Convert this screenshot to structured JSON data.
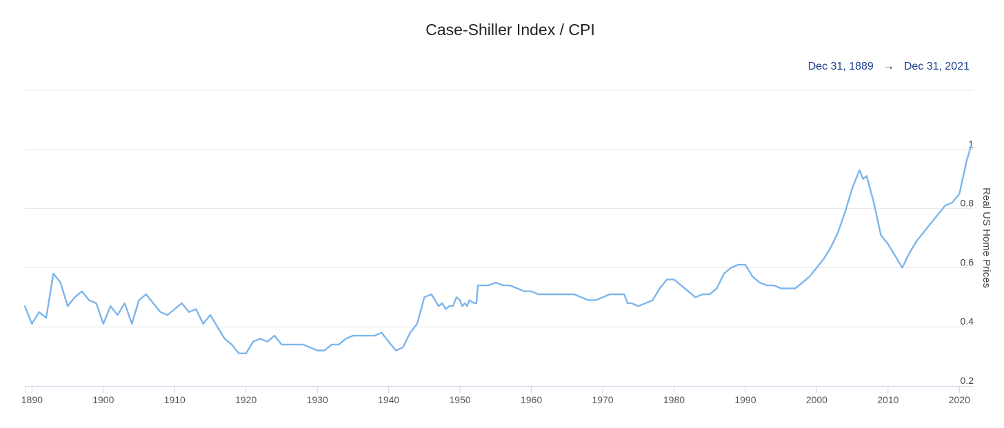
{
  "chart_data": {
    "type": "line",
    "title": "Case-Shiller Index / CPI",
    "date_range": {
      "start": "Dec 31, 1889",
      "separator": "→",
      "end": "Dec 31, 2021"
    },
    "xlabel": "",
    "ylabel": "Real US Home Prices",
    "xlim": [
      1889,
      2022
    ],
    "ylim": [
      0.2,
      1.2
    ],
    "x_ticks": [
      1890,
      1900,
      1910,
      1920,
      1930,
      1940,
      1950,
      1960,
      1970,
      1980,
      1990,
      2000,
      2010,
      2020
    ],
    "y_ticks": [
      0.2,
      0.4,
      0.6,
      0.8,
      1
    ],
    "y_tick_labels": [
      "0.2",
      "0.4",
      "0.6",
      "0.8",
      "1"
    ],
    "y_axis_position": "right",
    "grid": "horizontal",
    "line_color": "#7cb5ec",
    "series": [
      {
        "values": [
          [
            1889,
            0.47
          ],
          [
            1890,
            0.41
          ],
          [
            1891,
            0.45
          ],
          [
            1892,
            0.43
          ],
          [
            1893,
            0.58
          ],
          [
            1894,
            0.55
          ],
          [
            1895,
            0.47
          ],
          [
            1896,
            0.5
          ],
          [
            1897,
            0.52
          ],
          [
            1898,
            0.49
          ],
          [
            1899,
            0.48
          ],
          [
            1900,
            0.41
          ],
          [
            1901,
            0.47
          ],
          [
            1902,
            0.44
          ],
          [
            1903,
            0.48
          ],
          [
            1904,
            0.41
          ],
          [
            1905,
            0.49
          ],
          [
            1906,
            0.51
          ],
          [
            1907,
            0.48
          ],
          [
            1908,
            0.45
          ],
          [
            1909,
            0.44
          ],
          [
            1910,
            0.46
          ],
          [
            1911,
            0.48
          ],
          [
            1912,
            0.45
          ],
          [
            1913,
            0.46
          ],
          [
            1914,
            0.41
          ],
          [
            1915,
            0.44
          ],
          [
            1916,
            0.4
          ],
          [
            1917,
            0.36
          ],
          [
            1918,
            0.34
          ],
          [
            1919,
            0.31
          ],
          [
            1920,
            0.31
          ],
          [
            1921,
            0.35
          ],
          [
            1922,
            0.36
          ],
          [
            1923,
            0.35
          ],
          [
            1924,
            0.37
          ],
          [
            1925,
            0.34
          ],
          [
            1926,
            0.34
          ],
          [
            1927,
            0.34
          ],
          [
            1928,
            0.34
          ],
          [
            1929,
            0.33
          ],
          [
            1930,
            0.32
          ],
          [
            1931,
            0.32
          ],
          [
            1932,
            0.34
          ],
          [
            1933,
            0.34
          ],
          [
            1934,
            0.36
          ],
          [
            1935,
            0.37
          ],
          [
            1936,
            0.37
          ],
          [
            1937,
            0.37
          ],
          [
            1938,
            0.37
          ],
          [
            1939,
            0.38
          ],
          [
            1940,
            0.35
          ],
          [
            1941,
            0.32
          ],
          [
            1942,
            0.33
          ],
          [
            1943,
            0.38
          ],
          [
            1944,
            0.41
          ],
          [
            1945,
            0.5
          ],
          [
            1946,
            0.51
          ],
          [
            1947,
            0.47
          ],
          [
            1947.5,
            0.48
          ],
          [
            1948,
            0.46
          ],
          [
            1948.5,
            0.47
          ],
          [
            1949,
            0.47
          ],
          [
            1949.5,
            0.5
          ],
          [
            1950,
            0.49
          ],
          [
            1950.3,
            0.47
          ],
          [
            1950.7,
            0.48
          ],
          [
            1951,
            0.47
          ],
          [
            1951.3,
            0.49
          ],
          [
            1952,
            0.48
          ],
          [
            1952.3,
            0.48
          ],
          [
            1952.5,
            0.54
          ],
          [
            1953,
            0.54
          ],
          [
            1954,
            0.54
          ],
          [
            1955,
            0.55
          ],
          [
            1956,
            0.54
          ],
          [
            1957,
            0.54
          ],
          [
            1958,
            0.53
          ],
          [
            1959,
            0.52
          ],
          [
            1960,
            0.52
          ],
          [
            1961,
            0.51
          ],
          [
            1962,
            0.51
          ],
          [
            1963,
            0.51
          ],
          [
            1964,
            0.51
          ],
          [
            1965,
            0.51
          ],
          [
            1966,
            0.51
          ],
          [
            1967,
            0.5
          ],
          [
            1968,
            0.49
          ],
          [
            1969,
            0.49
          ],
          [
            1970,
            0.5
          ],
          [
            1971,
            0.51
          ],
          [
            1972,
            0.51
          ],
          [
            1973,
            0.51
          ],
          [
            1973.5,
            0.48
          ],
          [
            1974,
            0.48
          ],
          [
            1975,
            0.47
          ],
          [
            1976,
            0.48
          ],
          [
            1977,
            0.49
          ],
          [
            1978,
            0.53
          ],
          [
            1979,
            0.56
          ],
          [
            1980,
            0.56
          ],
          [
            1981,
            0.54
          ],
          [
            1982,
            0.52
          ],
          [
            1983,
            0.5
          ],
          [
            1984,
            0.51
          ],
          [
            1985,
            0.51
          ],
          [
            1986,
            0.53
          ],
          [
            1987,
            0.58
          ],
          [
            1988,
            0.6
          ],
          [
            1989,
            0.61
          ],
          [
            1990,
            0.61
          ],
          [
            1991,
            0.57
          ],
          [
            1992,
            0.55
          ],
          [
            1993,
            0.54
          ],
          [
            1994,
            0.54
          ],
          [
            1995,
            0.53
          ],
          [
            1996,
            0.53
          ],
          [
            1997,
            0.53
          ],
          [
            1998,
            0.55
          ],
          [
            1999,
            0.57
          ],
          [
            2000,
            0.6
          ],
          [
            2001,
            0.63
          ],
          [
            2002,
            0.67
          ],
          [
            2003,
            0.72
          ],
          [
            2004,
            0.79
          ],
          [
            2005,
            0.87
          ],
          [
            2006,
            0.93
          ],
          [
            2006.5,
            0.9
          ],
          [
            2007,
            0.91
          ],
          [
            2008,
            0.82
          ],
          [
            2009,
            0.71
          ],
          [
            2010,
            0.68
          ],
          [
            2011,
            0.64
          ],
          [
            2012,
            0.6
          ],
          [
            2013,
            0.65
          ],
          [
            2014,
            0.69
          ],
          [
            2015,
            0.72
          ],
          [
            2016,
            0.75
          ],
          [
            2017,
            0.78
          ],
          [
            2018,
            0.81
          ],
          [
            2019,
            0.82
          ],
          [
            2020,
            0.85
          ],
          [
            2021,
            0.96
          ],
          [
            2021.6,
            1.01
          ]
        ]
      }
    ]
  }
}
